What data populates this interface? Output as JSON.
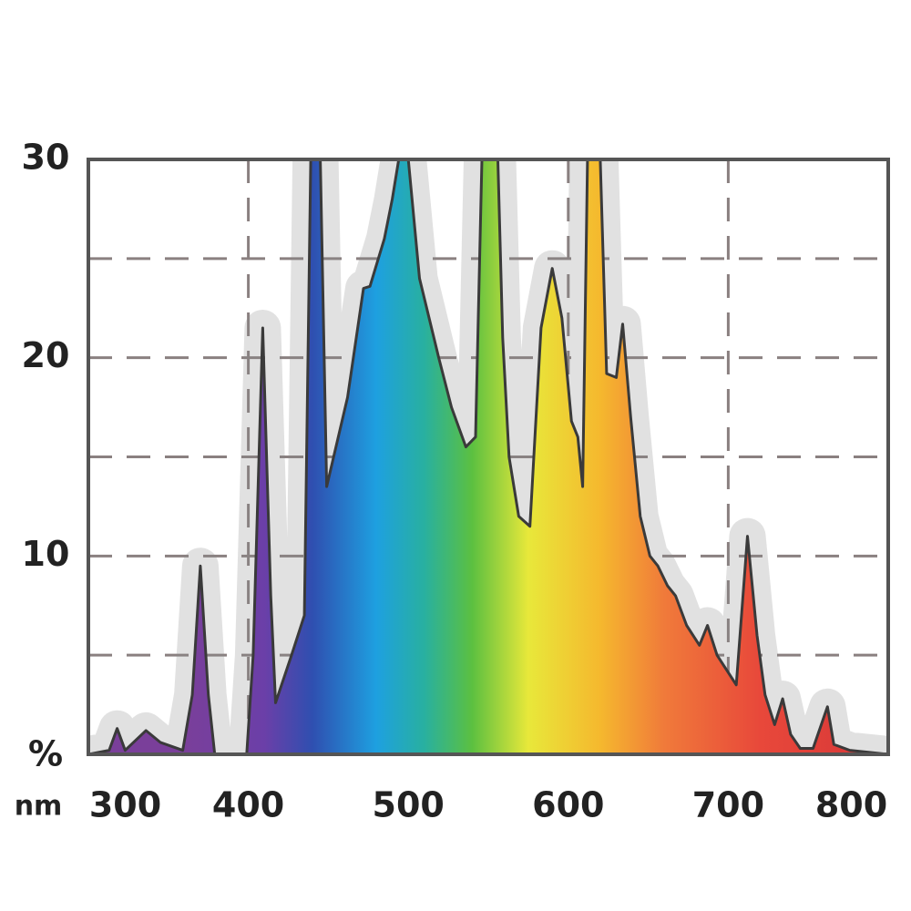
{
  "chart_data": {
    "type": "area",
    "y_unit": "%",
    "x_unit": "nm",
    "x": [
      300,
      313,
      318,
      323,
      336,
      345,
      359,
      365,
      370,
      375,
      379,
      399,
      403,
      409,
      414,
      417,
      427,
      435,
      439,
      445,
      449,
      462,
      472,
      476,
      485,
      490,
      494,
      500,
      507,
      519,
      527,
      536,
      542,
      546,
      556,
      559,
      563,
      569,
      576,
      583,
      590,
      596,
      602,
      606,
      609,
      612,
      620,
      624,
      630,
      634,
      639,
      645,
      651,
      656,
      662,
      667,
      674,
      682,
      687,
      693,
      701,
      705,
      712,
      718,
      723,
      729,
      734,
      739,
      745,
      753,
      762,
      766,
      776,
      800
    ],
    "values": [
      0,
      0.2,
      1.3,
      0.2,
      1.2,
      0.6,
      0.2,
      3,
      9.5,
      3,
      0,
      0,
      5,
      21.5,
      8,
      2.6,
      5,
      7,
      30,
      30,
      13.5,
      18,
      23.5,
      23.6,
      26,
      28,
      30,
      30,
      24,
      20,
      17.5,
      15.5,
      16,
      30,
      30,
      21,
      15,
      12,
      11.5,
      21.5,
      24.5,
      22,
      16.8,
      16,
      13.5,
      30,
      30,
      19.2,
      19,
      21.7,
      17,
      12,
      10,
      9.5,
      8.5,
      8,
      6.5,
      5.5,
      6.5,
      5,
      4,
      3.5,
      11,
      6,
      3,
      1.5,
      2.8,
      1,
      0.3,
      0.3,
      2.4,
      0.5,
      0.2,
      0
    ],
    "xlim": [
      300,
      800
    ],
    "ylim": [
      0,
      30
    ],
    "xticks": [
      300,
      400,
      500,
      600,
      700,
      800
    ],
    "yticks": [
      10,
      20,
      30
    ],
    "xgrid": [
      400,
      600,
      700
    ],
    "ygrid": [
      5,
      10,
      15,
      20,
      25
    ],
    "outline_color": "#3a3a3a",
    "gradient_stops": [
      {
        "x": 360,
        "color": "#7a3f9a"
      },
      {
        "x": 410,
        "color": "#6b3fa8"
      },
      {
        "x": 440,
        "color": "#2f4fb0"
      },
      {
        "x": 480,
        "color": "#1ea0e0"
      },
      {
        "x": 510,
        "color": "#28b0a0"
      },
      {
        "x": 540,
        "color": "#5cc040"
      },
      {
        "x": 575,
        "color": "#e8e83a"
      },
      {
        "x": 620,
        "color": "#f5b82e"
      },
      {
        "x": 660,
        "color": "#f07a3a"
      },
      {
        "x": 720,
        "color": "#e8483a"
      },
      {
        "x": 790,
        "color": "#d83838"
      }
    ]
  }
}
